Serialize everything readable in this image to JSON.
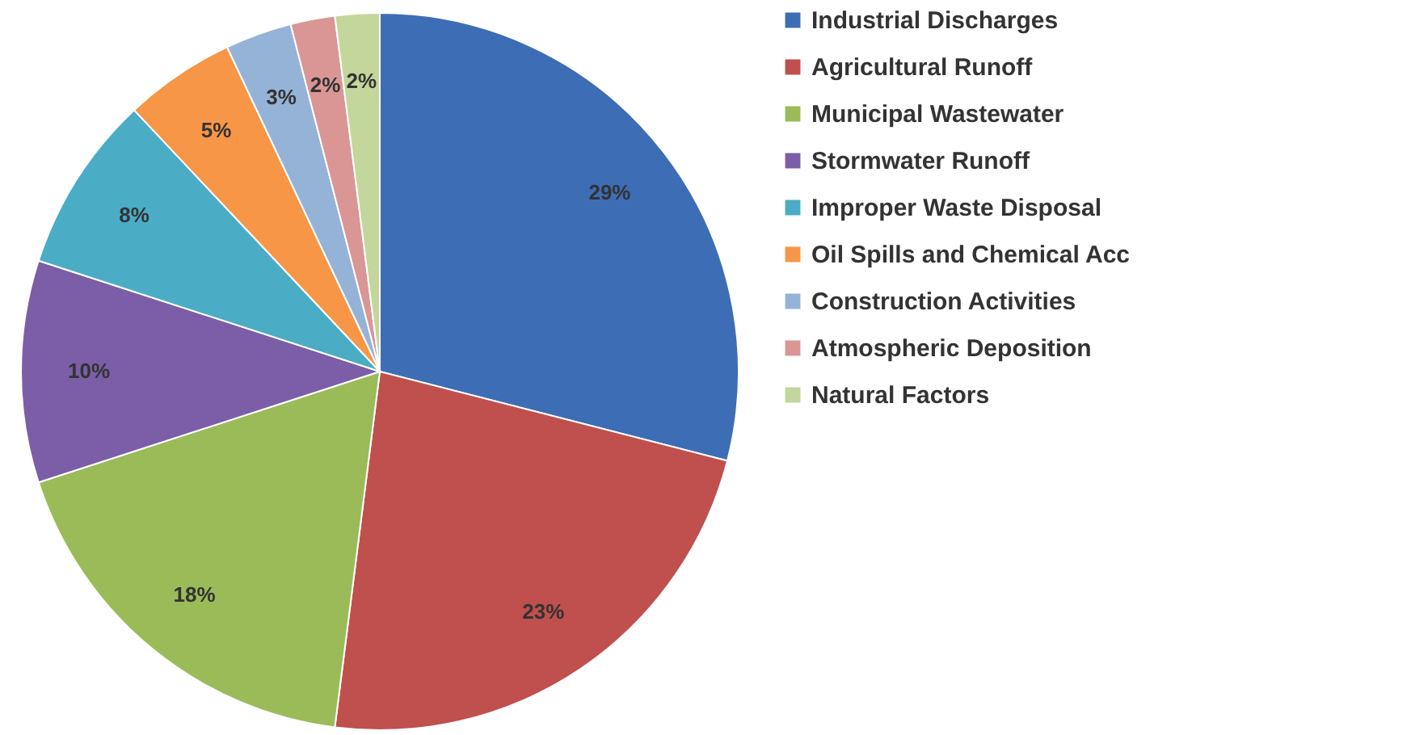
{
  "chart_data": {
    "type": "pie",
    "categories": [
      "Industrial Discharges",
      "Agricultural Runoff",
      "Municipal Wastewater",
      "Stormwater Runoff",
      "Improper Waste Disposal",
      "Oil Spills and Chemical Acc",
      "Construction Activities",
      "Atmospheric Deposition",
      "Natural Factors"
    ],
    "values": [
      29,
      23,
      18,
      10,
      8,
      5,
      3,
      2,
      2
    ],
    "colors": [
      "#3d6db5",
      "#c0504d",
      "#9bbb59",
      "#7b5ea7",
      "#4bacc6",
      "#f79646",
      "#95b3d7",
      "#d99694",
      "#c3d69b"
    ],
    "value_labels": [
      "29%",
      "23%",
      "18%",
      "10%",
      "8%",
      "5%",
      "3%",
      "2%",
      "2%"
    ],
    "legend": "right"
  }
}
